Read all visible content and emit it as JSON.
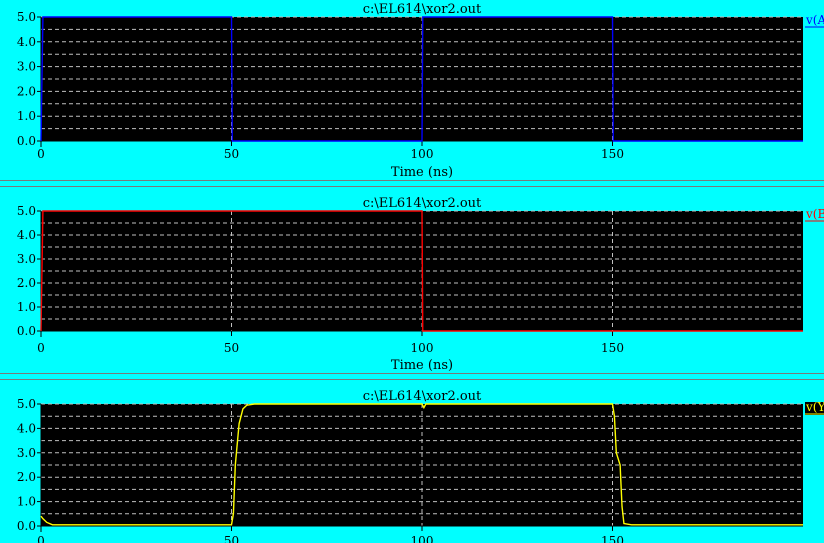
{
  "colors": {
    "background": "#00ffff",
    "plot_bg": "#000000",
    "grid": "#c0c0c0",
    "text": "#000000"
  },
  "chart_data": [
    {
      "type": "line",
      "title": "c:\\EL614\\xor2.out",
      "xlabel": "Time (ns)",
      "ylabel": "",
      "xlim": [
        0,
        200
      ],
      "ylim": [
        0,
        5.0
      ],
      "x_ticks": [
        0,
        50,
        100,
        150
      ],
      "y_ticks": [
        0.0,
        1.0,
        2.0,
        3.0,
        4.0,
        5.0
      ],
      "y_tick_labels": [
        "0.0",
        "1.0",
        "2.0",
        "3.0",
        "4.0",
        "5.0"
      ],
      "grid": true,
      "legend_position": "right",
      "series": [
        {
          "name": "v(A",
          "color": "#0000ff",
          "x": [
            0,
            0.5,
            50,
            50.2,
            100,
            100.2,
            150,
            150.2,
            200
          ],
          "y": [
            0,
            5,
            5,
            0,
            0,
            5,
            5,
            0,
            0
          ]
        }
      ]
    },
    {
      "type": "line",
      "title": "c:\\EL614\\xor2.out",
      "xlabel": "Time (ns)",
      "ylabel": "",
      "xlim": [
        0,
        200
      ],
      "ylim": [
        0,
        5.0
      ],
      "x_ticks": [
        0,
        50,
        100,
        150
      ],
      "y_ticks": [
        0.0,
        1.0,
        2.0,
        3.0,
        4.0,
        5.0
      ],
      "y_tick_labels": [
        "0.0",
        "1.0",
        "2.0",
        "3.0",
        "4.0",
        "5.0"
      ],
      "grid": true,
      "legend_position": "right",
      "series": [
        {
          "name": "v(B",
          "color": "#ff0000",
          "x": [
            0,
            0.5,
            100,
            100.2,
            200
          ],
          "y": [
            0,
            5,
            5,
            0,
            0
          ]
        }
      ]
    },
    {
      "type": "line",
      "title": "c:\\EL614\\xor2.out",
      "xlabel": "",
      "ylabel": "",
      "xlim": [
        0,
        200
      ],
      "ylim": [
        0,
        5.0
      ],
      "x_ticks": [
        0,
        50,
        100,
        150
      ],
      "y_ticks": [
        0.0,
        1.0,
        2.0,
        3.0,
        4.0,
        5.0
      ],
      "y_tick_labels": [
        "0.0",
        "1.0",
        "2.0",
        "3.0",
        "4.0",
        "5.0"
      ],
      "grid": true,
      "legend_position": "right",
      "series": [
        {
          "name": "v(Y",
          "color": "#ffff00",
          "x": [
            0,
            0.5,
            1.5,
            3,
            50,
            50.5,
            51,
            52,
            53,
            54,
            56,
            100,
            100.5,
            101,
            102,
            150,
            150.5,
            151,
            152,
            152.5,
            153,
            155,
            200
          ],
          "y": [
            0.4,
            0.3,
            0.15,
            0.05,
            0.05,
            0.5,
            2.5,
            4.2,
            4.8,
            4.95,
            5.0,
            5.0,
            4.85,
            5.0,
            5.0,
            5.0,
            4.5,
            3.0,
            2.5,
            0.8,
            0.1,
            0.05,
            0.05
          ]
        }
      ]
    }
  ]
}
